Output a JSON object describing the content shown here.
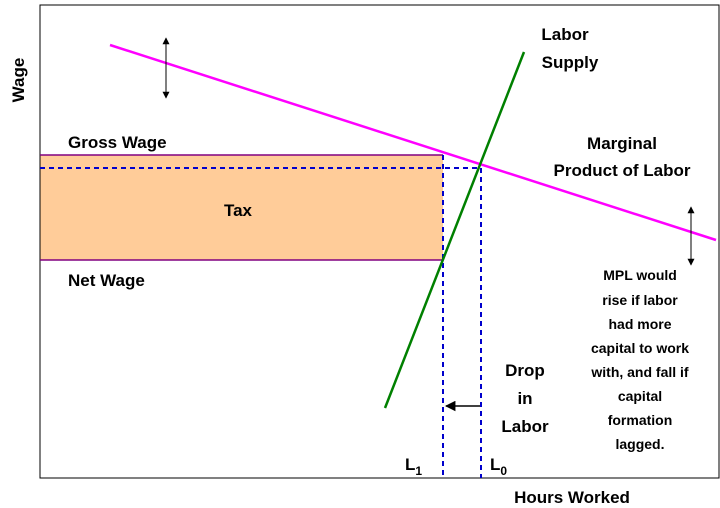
{
  "axes": {
    "y_label": "Wage",
    "x_label": "Hours Worked"
  },
  "labels": {
    "supply": [
      "Labor",
      "Supply"
    ],
    "gross_wage": "Gross Wage",
    "net_wage": "Net Wage",
    "tax": "Tax",
    "mpl": [
      "Marginal",
      "Product of Labor"
    ],
    "note": [
      "MPL would",
      "rise if labor",
      "had more",
      "capital to work",
      "with, and fall if",
      "capital",
      "formation",
      "lagged."
    ],
    "drop": [
      "Drop",
      "in",
      "Labor"
    ],
    "l1": {
      "base": "L",
      "sub": "1"
    },
    "l0": {
      "base": "L",
      "sub": "0"
    }
  }
}
